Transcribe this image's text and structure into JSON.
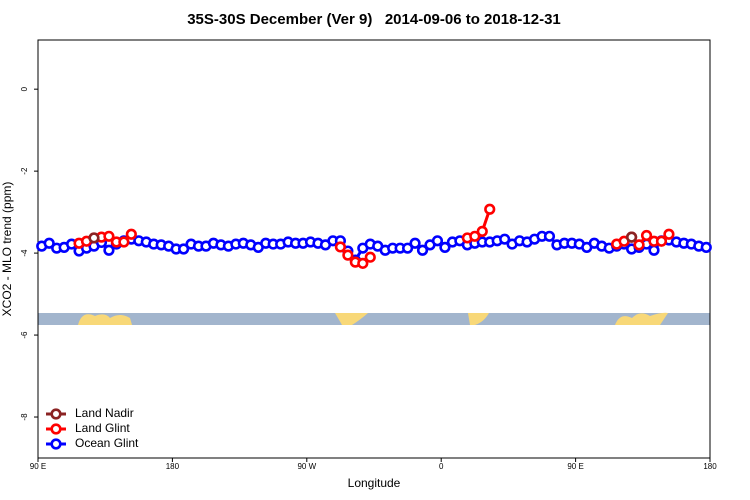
{
  "chart_data": {
    "type": "line",
    "title": "35S-30S December (Ver 9)   2014-09-06 to 2018-12-31",
    "xlabel": "Longitude",
    "ylabel": "XCO2 - MLO trend (ppm)",
    "xlim": [
      90,
      540
    ],
    "ylim": [
      -9,
      1.2
    ],
    "xticks": [
      {
        "value": 90,
        "label": "90 E"
      },
      180,
      {
        "value": 270,
        "label": "90 W"
      },
      {
        "value": 360,
        "label": "0"
      },
      {
        "value": 450,
        "label": "90 E"
      },
      {
        "value": 540,
        "label": "180"
      }
    ],
    "yticks": [
      0,
      -2,
      -4,
      -6,
      -8
    ],
    "legend": "bottom-left",
    "x": [
      92.5,
      97.5,
      102.5,
      107.5,
      112.5,
      117.5,
      122.5,
      127.5,
      132.5,
      137.5,
      142.5,
      147.5,
      152.5,
      157.5,
      162.5,
      167.5,
      172.5,
      177.5,
      182.5,
      187.5,
      192.5,
      197.5,
      202.5,
      207.5,
      212.5,
      217.5,
      222.5,
      227.5,
      232.5,
      237.5,
      242.5,
      247.5,
      252.5,
      257.5,
      262.5,
      267.5,
      272.5,
      277.5,
      282.5,
      287.5,
      292.5,
      297.5,
      302.5,
      307.5,
      312.5,
      317.5,
      322.5,
      327.5,
      332.5,
      337.5,
      342.5,
      347.5,
      352.5,
      357.5,
      362.5,
      367.5,
      372.5,
      377.5,
      382.5,
      387.5,
      392.5,
      397.5,
      402.5,
      407.5,
      412.5,
      417.5,
      422.5,
      427.5,
      432.5,
      437.5,
      442.5,
      447.5,
      452.5,
      457.5,
      462.5,
      467.5,
      472.5,
      477.5,
      482.5,
      487.5,
      492.5,
      497.5,
      502.5,
      507.5,
      512.5,
      517.5,
      522.5,
      527.5,
      532.5,
      537.5
    ],
    "series": [
      {
        "name": "Land Nadir",
        "color": "#8b2323",
        "values": [
          null,
          null,
          null,
          null,
          null,
          null,
          null,
          -3.63,
          null,
          null,
          null,
          null,
          null,
          null,
          null,
          null,
          null,
          null,
          null,
          null,
          null,
          null,
          null,
          null,
          null,
          null,
          null,
          null,
          null,
          null,
          null,
          null,
          null,
          null,
          null,
          null,
          null,
          null,
          null,
          null,
          null,
          null,
          null,
          null,
          null,
          null,
          null,
          null,
          null,
          null,
          null,
          null,
          null,
          null,
          null,
          null,
          null,
          null,
          null,
          null,
          null,
          null,
          null,
          null,
          null,
          null,
          null,
          null,
          null,
          null,
          null,
          null,
          null,
          null,
          null,
          null,
          null,
          null,
          null,
          -3.61,
          null,
          null,
          null,
          null,
          null,
          null,
          null,
          null,
          null,
          null
        ]
      },
      {
        "name": "Land Glint",
        "color": "#ff0000",
        "values": [
          null,
          null,
          null,
          null,
          null,
          -3.76,
          -3.71,
          -3.63,
          -3.61,
          -3.59,
          -3.73,
          -3.73,
          -3.54,
          null,
          null,
          null,
          null,
          null,
          null,
          null,
          null,
          null,
          null,
          null,
          null,
          null,
          null,
          null,
          null,
          null,
          null,
          null,
          null,
          null,
          null,
          null,
          null,
          null,
          null,
          null,
          -3.85,
          -4.05,
          -4.22,
          -4.25,
          -4.1,
          null,
          null,
          null,
          null,
          null,
          null,
          null,
          null,
          null,
          null,
          null,
          null,
          -3.63,
          -3.59,
          -3.47,
          -2.93,
          null,
          null,
          null,
          null,
          null,
          null,
          null,
          null,
          null,
          null,
          null,
          null,
          null,
          null,
          null,
          null,
          -3.78,
          -3.71,
          -3.61,
          -3.8,
          -3.57,
          -3.71,
          -3.71,
          -3.54,
          null,
          null,
          null,
          null,
          null
        ]
      },
      {
        "name": "Ocean Glint",
        "color": "#0000ff",
        "values": [
          -3.83,
          -3.76,
          -3.88,
          -3.86,
          -3.78,
          -3.95,
          -3.88,
          -3.83,
          -3.74,
          -3.93,
          -3.78,
          -3.7,
          -3.66,
          -3.7,
          -3.73,
          -3.78,
          -3.8,
          -3.83,
          -3.9,
          -3.9,
          -3.78,
          -3.83,
          -3.83,
          -3.76,
          -3.8,
          -3.83,
          -3.78,
          -3.76,
          -3.8,
          -3.86,
          -3.76,
          -3.78,
          -3.78,
          -3.73,
          -3.76,
          -3.76,
          -3.73,
          -3.76,
          -3.8,
          -3.7,
          -3.7,
          -3.95,
          -4.17,
          -3.88,
          -3.78,
          -3.83,
          -3.93,
          -3.88,
          -3.88,
          -3.88,
          -3.76,
          -3.93,
          -3.8,
          -3.7,
          -3.86,
          -3.73,
          -3.7,
          -3.8,
          -3.76,
          -3.73,
          -3.73,
          -3.7,
          -3.66,
          -3.78,
          -3.7,
          -3.73,
          -3.66,
          -3.59,
          -3.59,
          -3.8,
          -3.76,
          -3.76,
          -3.78,
          -3.86,
          -3.76,
          -3.83,
          -3.88,
          -3.83,
          -3.78,
          -3.9,
          -3.86,
          -3.78,
          -3.93,
          -3.7,
          -3.68,
          -3.73,
          -3.76,
          -3.78,
          -3.83,
          -3.86
        ]
      }
    ]
  }
}
